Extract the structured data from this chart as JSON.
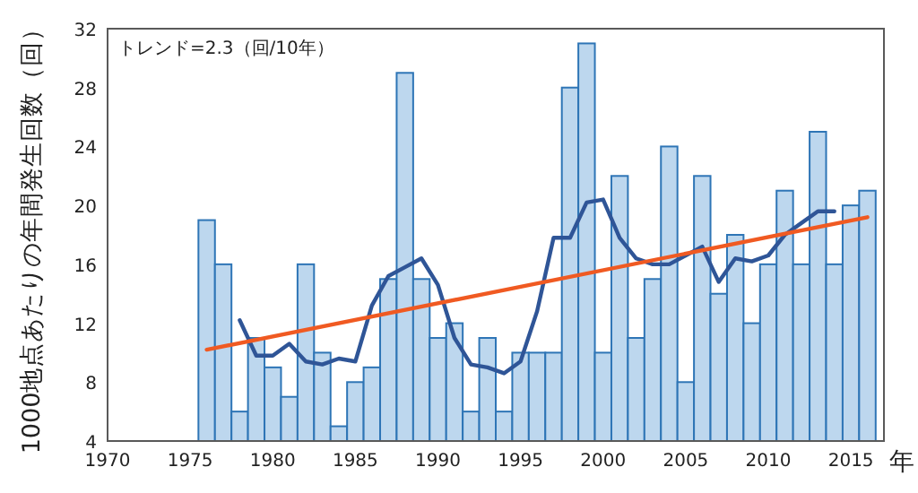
{
  "chart_data": {
    "type": "bar",
    "xlabel": "年",
    "ylabel": "1000地点あたりの年間発生回数（回）",
    "annotations": [
      "トレンド=2.3（回/10年）"
    ],
    "xlim": [
      1970,
      2017
    ],
    "xticks": [
      1970,
      1975,
      1980,
      1985,
      1990,
      1995,
      2000,
      2005,
      2010,
      2015
    ],
    "ylim": [
      4,
      32
    ],
    "yticks": [
      4,
      8,
      12,
      16,
      20,
      24,
      28,
      32
    ],
    "grid": false,
    "series": [
      {
        "color": "#bdd7ee",
        "x": [
          1976,
          1977,
          1978,
          1979,
          1980,
          1981,
          1982,
          1983,
          1984,
          1985,
          1986,
          1987,
          1988,
          1989,
          1990,
          1991,
          1992,
          1993,
          1994,
          1995,
          1996,
          1997,
          1998,
          1999,
          2000,
          2001,
          2002,
          2003,
          2004,
          2005,
          2006,
          2007,
          2008,
          2009,
          2010,
          2011,
          2012,
          2013,
          2014,
          2015,
          2016
        ],
        "values": [
          19,
          16,
          6,
          11,
          9,
          7,
          16,
          10,
          5,
          8,
          9,
          15,
          29,
          15,
          11,
          12,
          6,
          11,
          6,
          10,
          10,
          10,
          28,
          31,
          10,
          22,
          11,
          15,
          24,
          8,
          22,
          14,
          18,
          12,
          16,
          21,
          16,
          25,
          16,
          20,
          21
        ]
      },
      {
        "type": "line",
        "color": "#2f5597",
        "x": [
          1978,
          1979,
          1980,
          1981,
          1982,
          1983,
          1984,
          1985,
          1986,
          1987,
          1988,
          1989,
          1990,
          1991,
          1992,
          1993,
          1994,
          1995,
          1996,
          1997,
          1998,
          1999,
          2000,
          2001,
          2002,
          2003,
          2004,
          2005,
          2006,
          2007,
          2008,
          2009,
          2010,
          2011,
          2012,
          2013,
          2014
        ],
        "values": [
          12.2,
          9.8,
          9.8,
          10.6,
          9.4,
          9.2,
          9.6,
          9.4,
          13.2,
          15.2,
          15.8,
          16.4,
          14.6,
          11,
          9.2,
          9,
          8.6,
          9.4,
          12.8,
          17.8,
          17.8,
          20.2,
          20.4,
          17.8,
          16.4,
          16,
          16,
          16.6,
          17.2,
          14.8,
          16.4,
          16.2,
          16.6,
          18,
          18.8,
          19.6,
          19.6
        ]
      },
      {
        "type": "line",
        "color": "#f05a22",
        "x": [
          1976,
          2016
        ],
        "values": [
          10.2,
          19.2
        ]
      }
    ]
  }
}
